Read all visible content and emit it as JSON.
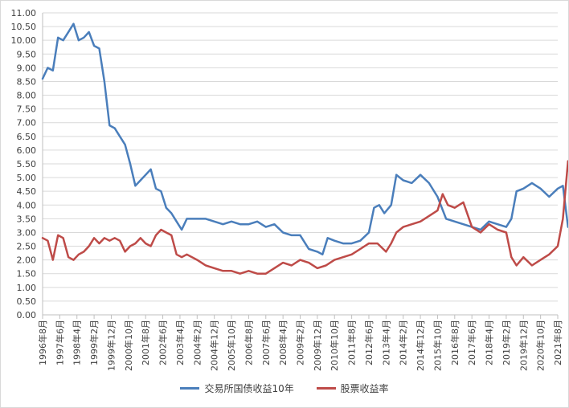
{
  "chart_data": {
    "type": "line",
    "title": "",
    "xlabel": "",
    "ylabel": "",
    "ylim": [
      0,
      11
    ],
    "y_ticks": [
      "0.00",
      "0.50",
      "1.00",
      "1.50",
      "2.00",
      "2.50",
      "3.00",
      "3.50",
      "4.00",
      "4.50",
      "5.00",
      "5.50",
      "6.00",
      "6.50",
      "7.00",
      "7.50",
      "8.00",
      "8.50",
      "9.00",
      "9.50",
      "10.00",
      "10.50",
      "11.00"
    ],
    "x_tick_labels": [
      "1996年8月",
      "1997年6月",
      "1998年4月",
      "1999年2月",
      "1999年12月",
      "2000年10月",
      "2001年8月",
      "2002年6月",
      "2003年4月",
      "2004年2月",
      "2004年12月",
      "2005年10月",
      "2006年8月",
      "2007年6月",
      "2008年4月",
      "2009年2月",
      "2009年12月",
      "2010年10月",
      "2011年8月",
      "2012年6月",
      "2013年4月",
      "2014年2月",
      "2014年12月",
      "2015年10月",
      "2016年8月",
      "2017年6月",
      "2018年4月",
      "2019年2月",
      "2019年12月",
      "2020年10月",
      "2021年8月"
    ],
    "grid": true,
    "legend_position": "bottom",
    "series": [
      {
        "name": "交易所国债收益10年",
        "color": "#4a7ebb",
        "points": [
          [
            0,
            8.6
          ],
          [
            0.3,
            9.0
          ],
          [
            0.6,
            8.9
          ],
          [
            0.9,
            10.1
          ],
          [
            1.2,
            10.0
          ],
          [
            1.5,
            10.3
          ],
          [
            1.8,
            10.6
          ],
          [
            2.1,
            10.0
          ],
          [
            2.4,
            10.1
          ],
          [
            2.7,
            10.3
          ],
          [
            3.0,
            9.8
          ],
          [
            3.3,
            9.7
          ],
          [
            3.6,
            8.5
          ],
          [
            3.9,
            6.9
          ],
          [
            4.2,
            6.8
          ],
          [
            4.5,
            6.5
          ],
          [
            4.8,
            6.2
          ],
          [
            5.1,
            5.5
          ],
          [
            5.4,
            4.7
          ],
          [
            5.7,
            4.9
          ],
          [
            6.0,
            5.1
          ],
          [
            6.3,
            5.3
          ],
          [
            6.6,
            4.6
          ],
          [
            6.9,
            4.5
          ],
          [
            7.2,
            3.9
          ],
          [
            7.5,
            3.7
          ],
          [
            7.8,
            3.4
          ],
          [
            8.1,
            3.1
          ],
          [
            8.4,
            3.5
          ],
          [
            9.0,
            3.5
          ],
          [
            9.5,
            3.5
          ],
          [
            10.0,
            3.4
          ],
          [
            10.5,
            3.3
          ],
          [
            11.0,
            3.4
          ],
          [
            11.5,
            3.3
          ],
          [
            12.0,
            3.3
          ],
          [
            12.5,
            3.4
          ],
          [
            13.0,
            3.2
          ],
          [
            13.5,
            3.3
          ],
          [
            14.0,
            3.0
          ],
          [
            14.5,
            2.9
          ],
          [
            15.0,
            2.9
          ],
          [
            15.5,
            2.4
          ],
          [
            16.0,
            2.3
          ],
          [
            16.3,
            2.2
          ],
          [
            16.6,
            2.8
          ],
          [
            17.0,
            2.7
          ],
          [
            17.5,
            2.6
          ],
          [
            18.0,
            2.6
          ],
          [
            18.5,
            2.7
          ],
          [
            19.0,
            3.0
          ],
          [
            19.3,
            3.9
          ],
          [
            19.6,
            4.0
          ],
          [
            19.9,
            3.7
          ],
          [
            20.3,
            4.0
          ],
          [
            20.6,
            5.1
          ],
          [
            21.0,
            4.9
          ],
          [
            21.5,
            4.8
          ],
          [
            22.0,
            5.1
          ],
          [
            22.5,
            4.8
          ],
          [
            23.0,
            4.3
          ],
          [
            23.5,
            3.5
          ],
          [
            24.0,
            3.4
          ],
          [
            24.5,
            3.3
          ],
          [
            25.0,
            3.2
          ],
          [
            25.5,
            3.1
          ],
          [
            26.0,
            3.4
          ],
          [
            26.5,
            3.3
          ],
          [
            27.0,
            3.2
          ],
          [
            27.3,
            3.5
          ],
          [
            27.6,
            4.5
          ],
          [
            28.0,
            4.6
          ],
          [
            28.5,
            4.8
          ],
          [
            29.0,
            4.6
          ],
          [
            29.5,
            4.3
          ],
          [
            30.0,
            4.6
          ],
          [
            30.3,
            4.7
          ],
          [
            30.6,
            3.2
          ],
          [
            31.0,
            3.1
          ],
          [
            31.5,
            3.3
          ],
          [
            32.0,
            3.4
          ],
          [
            32.5,
            3.5
          ],
          [
            33.0,
            3.6
          ],
          [
            33.5,
            3.7
          ],
          [
            34.0,
            3.6
          ],
          [
            34.5,
            3.6
          ],
          [
            35.0,
            3.6
          ],
          [
            35.5,
            3.7
          ],
          [
            36.0,
            3.7
          ],
          [
            36.5,
            3.8
          ],
          [
            37.0,
            3.7
          ],
          [
            37.5,
            3.7
          ],
          [
            38.0,
            3.7
          ],
          [
            38.5,
            3.6
          ],
          [
            39.0,
            3.5
          ],
          [
            39.5,
            3.6
          ],
          [
            40.0,
            3.6
          ],
          [
            40.5,
            3.6
          ],
          [
            41.0,
            3.5
          ],
          [
            41.5,
            3.5
          ],
          [
            42.0,
            3.8
          ],
          [
            42.5,
            4.2
          ],
          [
            43.0,
            4.6
          ],
          [
            43.5,
            4.5
          ],
          [
            44.0,
            4.0
          ],
          [
            44.5,
            4.2
          ],
          [
            45.0,
            3.7
          ],
          [
            45.5,
            3.5
          ],
          [
            46.0,
            3.3
          ],
          [
            46.5,
            3.4
          ],
          [
            47.0,
            3.5
          ],
          [
            47.5,
            3.4
          ],
          [
            48.0,
            3.0
          ],
          [
            48.5,
            2.9
          ],
          [
            49.0,
            2.8
          ],
          [
            49.5,
            2.9
          ],
          [
            50.0,
            2.8
          ],
          [
            50.5,
            2.8
          ],
          [
            51.0,
            2.8
          ],
          [
            51.5,
            3.0
          ],
          [
            52.0,
            3.3
          ],
          [
            52.5,
            3.4
          ],
          [
            53.0,
            3.6
          ],
          [
            53.5,
            3.7
          ],
          [
            54.0,
            3.7
          ],
          [
            54.5,
            3.9
          ],
          [
            55.0,
            3.8
          ],
          [
            55.5,
            3.7
          ],
          [
            56.0,
            3.6
          ],
          [
            56.5,
            3.4
          ],
          [
            57.0,
            3.3
          ],
          [
            57.5,
            3.2
          ],
          [
            58.0,
            3.2
          ],
          [
            58.5,
            3.3
          ],
          [
            59.0,
            3.3
          ],
          [
            59.5,
            3.2
          ],
          [
            60.0,
            3.1
          ],
          [
            60.5,
            2.8
          ],
          [
            61.0,
            2.6
          ],
          [
            61.5,
            2.8
          ],
          [
            62.0,
            3.1
          ],
          [
            62.5,
            3.2
          ],
          [
            63.0,
            3.2
          ],
          [
            63.5,
            3.3
          ],
          [
            64.0,
            3.3
          ],
          [
            64.5,
            3.1
          ],
          [
            64.8,
            3.0
          ],
          [
            65.0,
            2.85
          ]
        ]
      },
      {
        "name": "股票收益率",
        "color": "#be4b48",
        "points": [
          [
            0,
            2.8
          ],
          [
            0.3,
            2.7
          ],
          [
            0.6,
            2.0
          ],
          [
            0.9,
            2.9
          ],
          [
            1.2,
            2.8
          ],
          [
            1.5,
            2.1
          ],
          [
            1.8,
            2.0
          ],
          [
            2.1,
            2.2
          ],
          [
            2.4,
            2.3
          ],
          [
            2.7,
            2.5
          ],
          [
            3.0,
            2.8
          ],
          [
            3.3,
            2.6
          ],
          [
            3.6,
            2.8
          ],
          [
            3.9,
            2.7
          ],
          [
            4.2,
            2.8
          ],
          [
            4.5,
            2.7
          ],
          [
            4.8,
            2.3
          ],
          [
            5.1,
            2.5
          ],
          [
            5.4,
            2.6
          ],
          [
            5.7,
            2.8
          ],
          [
            6.0,
            2.6
          ],
          [
            6.3,
            2.5
          ],
          [
            6.6,
            2.9
          ],
          [
            6.9,
            3.1
          ],
          [
            7.2,
            3.0
          ],
          [
            7.5,
            2.9
          ],
          [
            7.8,
            2.2
          ],
          [
            8.1,
            2.1
          ],
          [
            8.4,
            2.2
          ],
          [
            9.0,
            2.0
          ],
          [
            9.5,
            1.8
          ],
          [
            10.0,
            1.7
          ],
          [
            10.5,
            1.6
          ],
          [
            11.0,
            1.6
          ],
          [
            11.5,
            1.5
          ],
          [
            12.0,
            1.6
          ],
          [
            12.5,
            1.5
          ],
          [
            13.0,
            1.5
          ],
          [
            13.5,
            1.7
          ],
          [
            14.0,
            1.9
          ],
          [
            14.5,
            1.8
          ],
          [
            15.0,
            2.0
          ],
          [
            15.5,
            1.9
          ],
          [
            16.0,
            1.7
          ],
          [
            16.5,
            1.8
          ],
          [
            17.0,
            2.0
          ],
          [
            17.5,
            2.1
          ],
          [
            18.0,
            2.2
          ],
          [
            18.5,
            2.4
          ],
          [
            19.0,
            2.6
          ],
          [
            19.5,
            2.6
          ],
          [
            20.0,
            2.3
          ],
          [
            20.3,
            2.6
          ],
          [
            20.6,
            3.0
          ],
          [
            21.0,
            3.2
          ],
          [
            21.5,
            3.3
          ],
          [
            22.0,
            3.4
          ],
          [
            22.5,
            3.6
          ],
          [
            23.0,
            3.8
          ],
          [
            23.3,
            4.4
          ],
          [
            23.6,
            4.0
          ],
          [
            24.0,
            3.9
          ],
          [
            24.5,
            4.1
          ],
          [
            25.0,
            3.2
          ],
          [
            25.5,
            3.0
          ],
          [
            26.0,
            3.3
          ],
          [
            26.5,
            3.1
          ],
          [
            27.0,
            3.0
          ],
          [
            27.3,
            2.1
          ],
          [
            27.6,
            1.8
          ],
          [
            28.0,
            2.1
          ],
          [
            28.5,
            1.8
          ],
          [
            29.0,
            2.0
          ],
          [
            29.5,
            2.2
          ],
          [
            30.0,
            2.5
          ],
          [
            30.3,
            3.5
          ],
          [
            30.6,
            5.6
          ],
          [
            30.9,
            3.9
          ],
          [
            31.2,
            3.2
          ],
          [
            31.5,
            2.8
          ],
          [
            32.0,
            2.6
          ],
          [
            32.5,
            2.2
          ],
          [
            33.0,
            2.1
          ],
          [
            33.5,
            2.1
          ],
          [
            34.0,
            2.3
          ],
          [
            34.3,
            2.8
          ],
          [
            34.6,
            2.3
          ],
          [
            35.0,
            2.2
          ],
          [
            35.5,
            2.2
          ],
          [
            36.0,
            2.3
          ],
          [
            36.5,
            2.6
          ],
          [
            37.0,
            2.7
          ],
          [
            37.5,
            3.2
          ],
          [
            38.0,
            3.7
          ],
          [
            38.5,
            3.5
          ],
          [
            39.0,
            3.7
          ],
          [
            39.5,
            3.5
          ],
          [
            40.0,
            4.1
          ],
          [
            40.5,
            3.3
          ],
          [
            41.0,
            3.6
          ],
          [
            41.5,
            3.0
          ],
          [
            42.0,
            3.1
          ],
          [
            42.5,
            3.0
          ],
          [
            43.0,
            3.2
          ],
          [
            43.5,
            3.1
          ],
          [
            44.0,
            3.0
          ],
          [
            44.5,
            2.8
          ],
          [
            45.0,
            2.6
          ],
          [
            45.5,
            2.5
          ],
          [
            46.0,
            1.9
          ],
          [
            46.3,
            1.6
          ],
          [
            46.6,
            1.7
          ],
          [
            47.0,
            2.0
          ],
          [
            47.5,
            2.3
          ],
          [
            48.0,
            1.8
          ],
          [
            48.5,
            2.3
          ],
          [
            49.0,
            2.0
          ],
          [
            49.5,
            2.0
          ],
          [
            50.0,
            1.9
          ],
          [
            50.5,
            2.0
          ],
          [
            51.0,
            2.0
          ],
          [
            51.5,
            2.1
          ],
          [
            52.0,
            2.3
          ],
          [
            52.5,
            2.4
          ],
          [
            53.0,
            2.4
          ],
          [
            53.5,
            2.6
          ],
          [
            54.0,
            2.9
          ],
          [
            54.5,
            3.0
          ],
          [
            55.0,
            3.2
          ],
          [
            55.5,
            3.6
          ],
          [
            56.0,
            4.2
          ],
          [
            56.5,
            4.3
          ],
          [
            57.0,
            3.4
          ],
          [
            57.5,
            3.6
          ],
          [
            58.0,
            3.7
          ],
          [
            58.5,
            3.8
          ],
          [
            59.0,
            3.5
          ],
          [
            59.5,
            3.6
          ],
          [
            60.0,
            3.3
          ],
          [
            60.5,
            3.2
          ],
          [
            61.0,
            2.9
          ],
          [
            61.5,
            3.2
          ],
          [
            62.0,
            3.3
          ],
          [
            62.5,
            3.3
          ],
          [
            63.0,
            3.2
          ],
          [
            63.5,
            3.6
          ],
          [
            64.0,
            3.5
          ],
          [
            64.5,
            3.6
          ],
          [
            65.0,
            3.55
          ]
        ]
      }
    ]
  }
}
